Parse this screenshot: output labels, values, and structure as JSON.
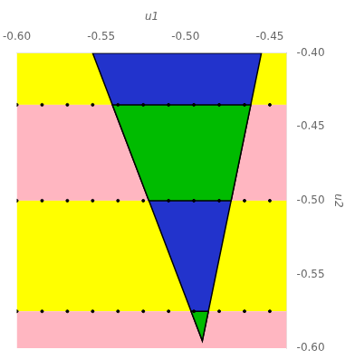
{
  "chart_data": {
    "type": "region",
    "xlabel": "u1",
    "ylabel": "u2",
    "xlim": [
      -0.6,
      -0.44
    ],
    "ylim": [
      -0.6,
      -0.4
    ],
    "xticks": [
      {
        "value": -0.6,
        "label": "-0.60"
      },
      -0.55,
      {
        "value": -0.5,
        "label": "-0.50"
      },
      -0.45
    ],
    "yticks": [
      {
        "value": -0.4,
        "label": "-0.40"
      },
      -0.45,
      {
        "value": -0.5,
        "label": "-0.50"
      },
      -0.55,
      {
        "value": -0.6,
        "label": "-0.60"
      }
    ],
    "grid": false,
    "bands": [
      {
        "y": [
          -0.4,
          -0.435
        ],
        "color": "#FFFF00"
      },
      {
        "y": [
          -0.435,
          -0.5
        ],
        "color": "#FFB6C1"
      },
      {
        "y": [
          -0.5,
          -0.575
        ],
        "color": "#FFFF00"
      },
      {
        "y": [
          -0.575,
          -0.6
        ],
        "color": "#FFB6C1"
      }
    ],
    "regions": [
      {
        "color": "#2233CC",
        "x": [
          -0.555,
          -0.455,
          -0.49
        ],
        "y": [
          -0.4,
          -0.4,
          -0.595
        ]
      },
      {
        "color": "#00BB00",
        "x": [
          -0.543333,
          -0.461282,
          -0.472949,
          -0.521667
        ],
        "y": [
          -0.435,
          -0.435,
          -0.5,
          -0.5
        ]
      },
      {
        "color": "#00BB00",
        "x": [
          -0.496667,
          -0.48641,
          -0.49
        ],
        "y": [
          -0.575,
          -0.575,
          -0.595
        ]
      }
    ],
    "dots": {
      "color": "#000000",
      "marker": "dot",
      "x": [
        -0.6,
        -0.585,
        -0.57,
        -0.555,
        -0.54,
        -0.525,
        -0.51,
        -0.495,
        -0.48,
        -0.465,
        -0.45
      ],
      "y": [
        -0.435,
        -0.5,
        -0.575
      ]
    }
  }
}
